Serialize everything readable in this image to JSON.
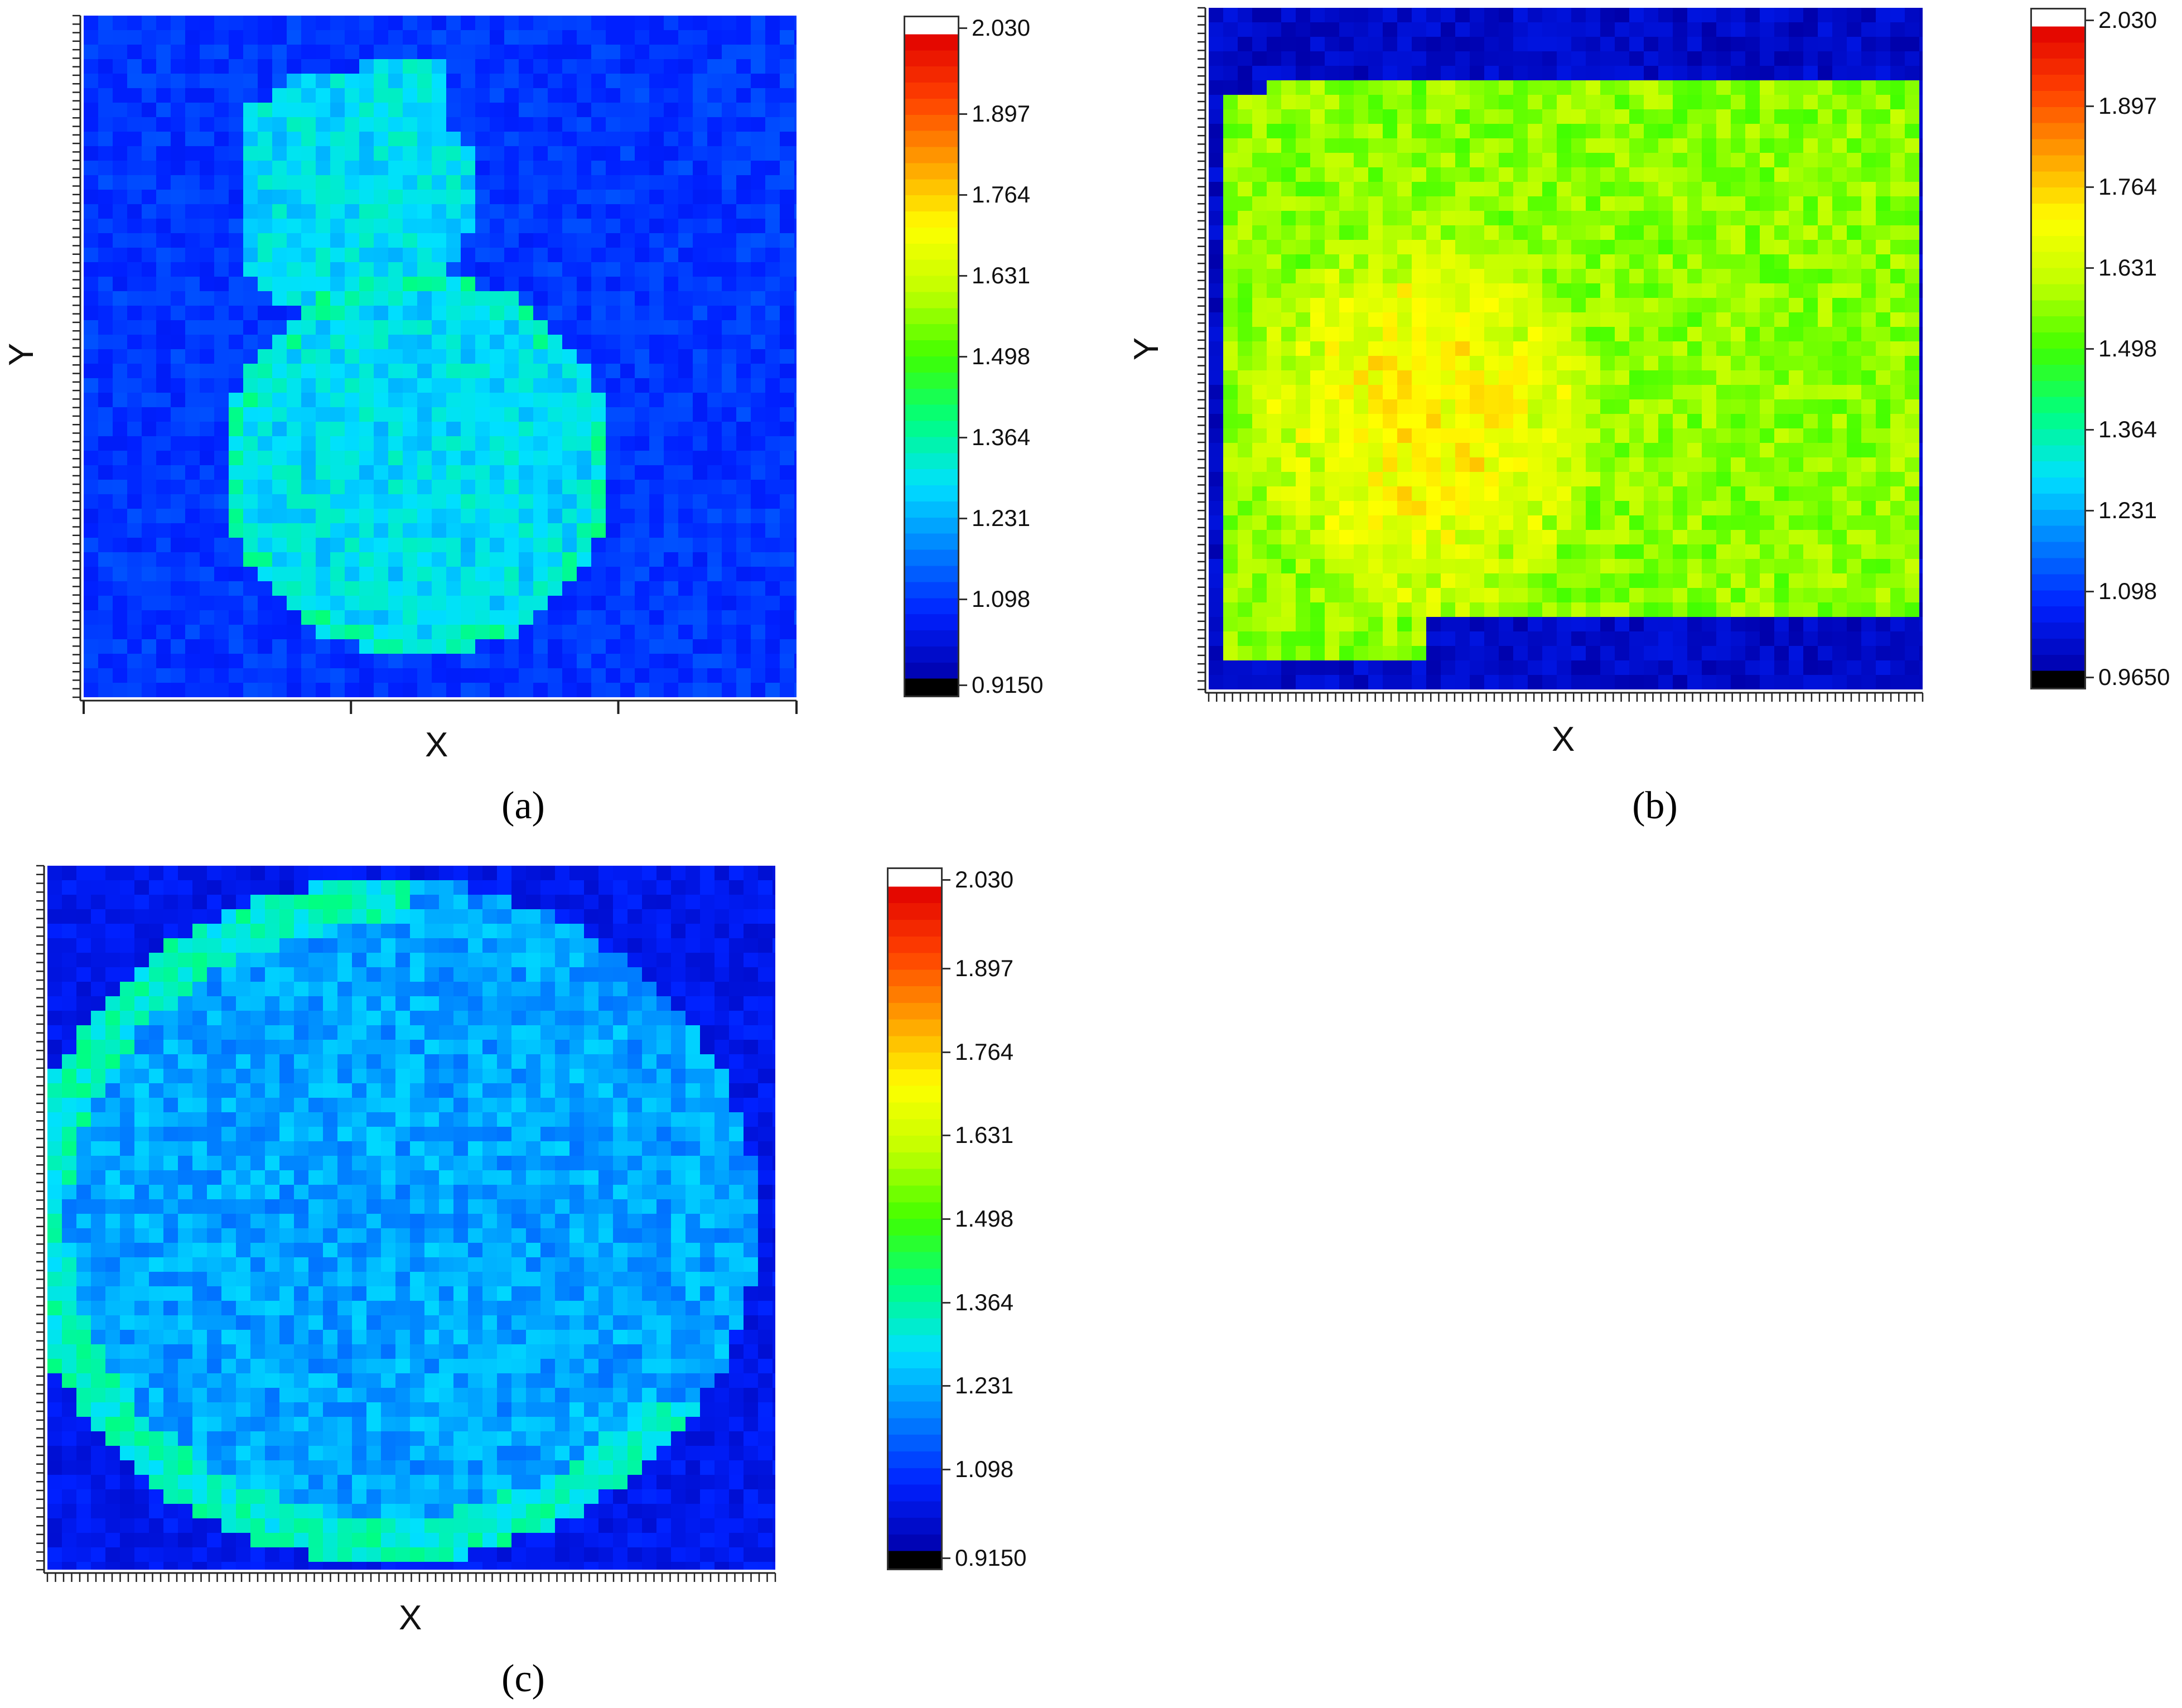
{
  "chart_data": [
    {
      "type": "heatmap",
      "panel_label": "(a)",
      "xlabel": "X",
      "ylabel": "Y",
      "colorbar": {
        "min": 0.915,
        "max": 2.03,
        "tick_labels": [
          "2.030",
          "1.897",
          "1.764",
          "1.631",
          "1.498",
          "1.364",
          "1.231",
          "1.098",
          "0.9150"
        ],
        "tick_values": [
          2.03,
          1.897,
          1.764,
          1.631,
          1.498,
          1.364,
          1.231,
          1.098,
          0.915
        ]
      },
      "background_value": 1.05,
      "shape": "gourd",
      "shape_value": 1.25
    },
    {
      "type": "heatmap",
      "panel_label": "(b)",
      "xlabel": "X",
      "ylabel": "Y",
      "colorbar": {
        "min": 0.965,
        "max": 2.03,
        "tick_labels": [
          "2.030",
          "1.897",
          "1.764",
          "1.631",
          "1.498",
          "1.364",
          "1.231",
          "1.098",
          "0.9650"
        ],
        "tick_values": [
          2.03,
          1.897,
          1.764,
          1.631,
          1.498,
          1.364,
          1.231,
          1.098,
          0.965
        ]
      },
      "background_value": 1.0,
      "shape": "square",
      "shape_value": 1.56
    },
    {
      "type": "heatmap",
      "panel_label": "(c)",
      "xlabel": "X",
      "ylabel": "",
      "colorbar": {
        "min": 0.915,
        "max": 2.03,
        "tick_labels": [
          "2.030",
          "1.897",
          "1.764",
          "1.631",
          "1.498",
          "1.364",
          "1.231",
          "1.098",
          "0.9150"
        ],
        "tick_values": [
          2.03,
          1.897,
          1.764,
          1.631,
          1.498,
          1.364,
          1.231,
          1.098,
          0.915
        ]
      },
      "background_value": 1.0,
      "shape": "disc",
      "shape_value": 1.18
    }
  ],
  "colors": {
    "jet_stops": [
      "#0000aa",
      "#0020ff",
      "#0080ff",
      "#00e0ff",
      "#00ff80",
      "#40ff00",
      "#c0ff00",
      "#ffff00",
      "#ffa000",
      "#ff4000",
      "#e00000"
    ],
    "under": "#000000",
    "over": "#ffffff"
  }
}
